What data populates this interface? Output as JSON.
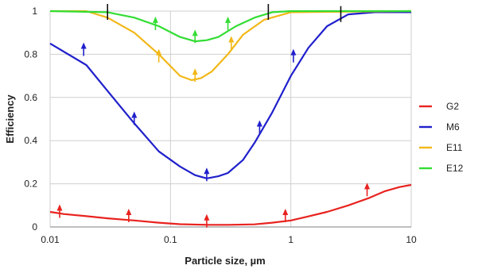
{
  "chart_data": {
    "type": "line",
    "xlabel": "Particle size, µm",
    "ylabel": "Efficiency",
    "x_scale": "log",
    "xlim": [
      0.01,
      10
    ],
    "ylim": [
      0,
      1
    ],
    "grid": true,
    "legend_position": "right",
    "x_ticks": [
      {
        "value": 0.01,
        "label": "0.01"
      },
      {
        "value": 0.1,
        "label": "0.1"
      },
      {
        "value": 1,
        "label": "1"
      },
      {
        "value": 10,
        "label": "10"
      }
    ],
    "y_ticks": [
      {
        "value": 0,
        "label": "0"
      },
      {
        "value": 0.2,
        "label": "0.2"
      },
      {
        "value": 0.4,
        "label": "0.4"
      },
      {
        "value": 0.6,
        "label": "0.6"
      },
      {
        "value": 0.8,
        "label": "0.8"
      },
      {
        "value": 1,
        "label": "1"
      }
    ],
    "series": [
      {
        "name": "G2",
        "color": "#e8231f",
        "points": [
          [
            0.01,
            0.07
          ],
          [
            0.013,
            0.06
          ],
          [
            0.02,
            0.05
          ],
          [
            0.03,
            0.04
          ],
          [
            0.05,
            0.03
          ],
          [
            0.08,
            0.02
          ],
          [
            0.12,
            0.013
          ],
          [
            0.2,
            0.01
          ],
          [
            0.3,
            0.01
          ],
          [
            0.5,
            0.012
          ],
          [
            0.7,
            0.02
          ],
          [
            1,
            0.03
          ],
          [
            1.3,
            0.045
          ],
          [
            2,
            0.07
          ],
          [
            3,
            0.1
          ],
          [
            4.5,
            0.135
          ],
          [
            6,
            0.165
          ],
          [
            8,
            0.185
          ],
          [
            10,
            0.195
          ]
        ],
        "arrows": [
          [
            0.012,
            0.09
          ],
          [
            0.045,
            0.07
          ],
          [
            0.2,
            0.045
          ],
          [
            0.9,
            0.07
          ],
          [
            4.3,
            0.19
          ]
        ]
      },
      {
        "name": "M6",
        "color": "#2020cc",
        "points": [
          [
            0.01,
            0.85
          ],
          [
            0.02,
            0.75
          ],
          [
            0.03,
            0.63
          ],
          [
            0.05,
            0.48
          ],
          [
            0.08,
            0.35
          ],
          [
            0.12,
            0.28
          ],
          [
            0.16,
            0.24
          ],
          [
            0.2,
            0.225
          ],
          [
            0.25,
            0.235
          ],
          [
            0.3,
            0.25
          ],
          [
            0.4,
            0.31
          ],
          [
            0.5,
            0.39
          ],
          [
            0.7,
            0.53
          ],
          [
            1,
            0.7
          ],
          [
            1.4,
            0.83
          ],
          [
            2,
            0.93
          ],
          [
            3,
            0.985
          ],
          [
            5,
            0.995
          ],
          [
            10,
            0.995
          ]
        ],
        "arrows": [
          [
            0.019,
            0.84
          ],
          [
            0.05,
            0.52
          ],
          [
            0.2,
            0.26
          ],
          [
            0.55,
            0.48
          ],
          [
            1.05,
            0.81
          ]
        ]
      },
      {
        "name": "E11",
        "color": "#f2b818",
        "points": [
          [
            0.01,
            1.0
          ],
          [
            0.02,
            1.0
          ],
          [
            0.03,
            0.97
          ],
          [
            0.05,
            0.9
          ],
          [
            0.08,
            0.8
          ],
          [
            0.12,
            0.7
          ],
          [
            0.15,
            0.68
          ],
          [
            0.18,
            0.69
          ],
          [
            0.22,
            0.72
          ],
          [
            0.3,
            0.8
          ],
          [
            0.4,
            0.89
          ],
          [
            0.6,
            0.96
          ],
          [
            1,
            0.995
          ],
          [
            10,
            1.0
          ]
        ],
        "arrows": [
          [
            0.08,
            0.81
          ],
          [
            0.16,
            0.72
          ],
          [
            0.32,
            0.87
          ]
        ]
      },
      {
        "name": "E12",
        "color": "#33dd33",
        "points": [
          [
            0.01,
            1.0
          ],
          [
            0.03,
            0.995
          ],
          [
            0.05,
            0.97
          ],
          [
            0.08,
            0.93
          ],
          [
            0.12,
            0.88
          ],
          [
            0.16,
            0.86
          ],
          [
            0.2,
            0.865
          ],
          [
            0.25,
            0.88
          ],
          [
            0.35,
            0.93
          ],
          [
            0.5,
            0.97
          ],
          [
            0.7,
            0.995
          ],
          [
            1,
            1.0
          ],
          [
            10,
            1.0
          ]
        ],
        "arrows": [
          [
            0.075,
            0.96
          ],
          [
            0.16,
            0.9
          ],
          [
            0.3,
            0.96
          ]
        ]
      }
    ],
    "markers": [
      {
        "series": "E12",
        "x": 0.03,
        "y": 1.0
      },
      {
        "series": "E12",
        "x": 0.65,
        "y": 1.0
      },
      {
        "series": "M6",
        "x": 2.6,
        "y": 0.99
      }
    ]
  }
}
